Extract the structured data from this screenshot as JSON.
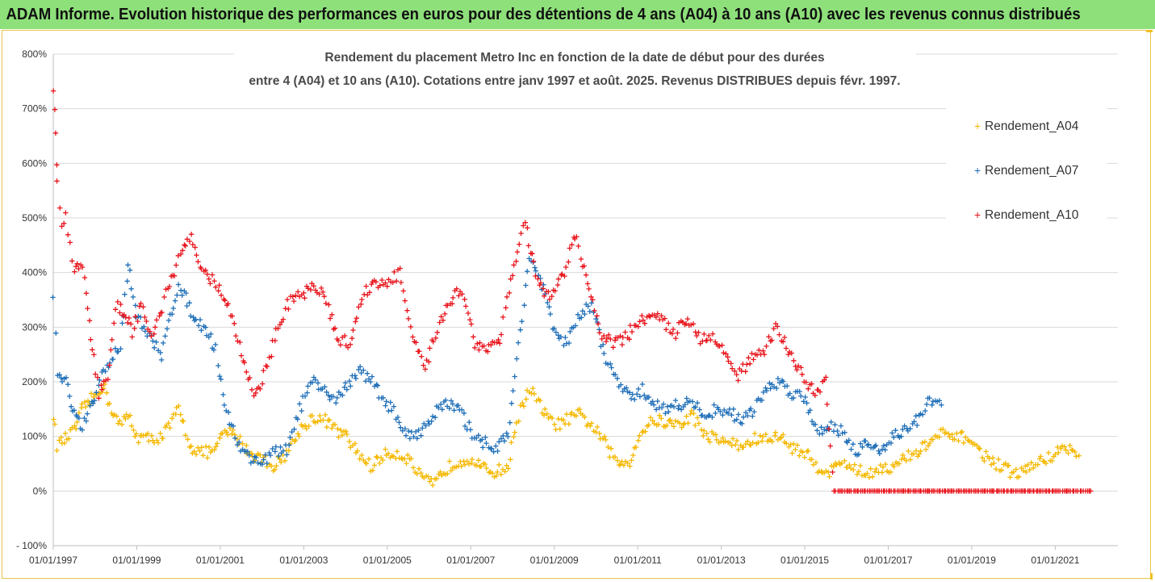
{
  "banner": {
    "title": "ADAM Informe. Evolution historique des performances en euros pour des détentions de 4 ans (A04) à 10 ans (A10) avec les revenus connus distribués"
  },
  "colors": {
    "banner_bg": "#8ee07a",
    "A04": "#f5b800",
    "A07": "#1f6fb8",
    "A10": "#e8141c",
    "grid": "#d9d9d9"
  },
  "chart_data": {
    "type": "scatter",
    "title_line1": "Rendement du placement Metro Inc en fonction de la date de début pour des durées",
    "title_line2": "entre 4 (A04) et 10 ans (A10). Cotations entre janv 1997 et août. 2025. Revenus DISTRIBUES depuis févr. 1997.",
    "xlabel": "",
    "ylabel": "",
    "ylim": [
      -100,
      800
    ],
    "xlim": [
      "1997-01-01",
      "2022-06-30"
    ],
    "grid": "horizontal",
    "legend_position": "right",
    "y_ticks": [
      "800%",
      "700%",
      "600%",
      "500%",
      "400%",
      "300%",
      "200%",
      "100%",
      "0%",
      "- 100%"
    ],
    "y_tick_values": [
      800,
      700,
      600,
      500,
      400,
      300,
      200,
      100,
      0,
      -100
    ],
    "x_ticks": [
      "01/01/1997",
      "01/01/1999",
      "01/01/2001",
      "01/01/2003",
      "01/01/2005",
      "01/01/2007",
      "01/01/2009",
      "01/01/2011",
      "01/01/2013",
      "01/01/2015",
      "01/01/2017",
      "01/01/2019",
      "01/01/2021"
    ],
    "x_tick_years": [
      1997,
      1999,
      2001,
      2003,
      2005,
      2007,
      2009,
      2011,
      2013,
      2015,
      2017,
      2019,
      2021
    ],
    "series": [
      {
        "name": "Rendement_A04",
        "x": [
          1997.0,
          1997.1,
          1997.3,
          1997.5,
          1997.7,
          1998.0,
          1998.2,
          1998.4,
          1998.6,
          1998.8,
          1999.0,
          1999.3,
          1999.6,
          1999.8,
          2000.0,
          2000.3,
          2000.6,
          2000.9,
          2001.1,
          2001.4,
          2001.7,
          2002.0,
          2002.3,
          2002.6,
          2002.9,
          2003.2,
          2003.5,
          2003.8,
          2004.0,
          2004.3,
          2004.6,
          2004.9,
          2005.2,
          2005.5,
          2005.8,
          2006.1,
          2006.4,
          2006.7,
          2007.0,
          2007.3,
          2007.6,
          2007.9,
          2008.1,
          2008.4,
          2008.7,
          2009.0,
          2009.3,
          2009.6,
          2009.9,
          2010.2,
          2010.5,
          2010.8,
          2011.1,
          2011.4,
          2011.7,
          2012.0,
          2012.3,
          2012.6,
          2012.9,
          2013.2,
          2013.5,
          2013.8,
          2014.1,
          2014.4,
          2014.7,
          2015.0,
          2015.3,
          2015.6,
          2015.9,
          2016.2,
          2016.5,
          2016.8,
          2017.1,
          2017.4,
          2017.7,
          2018.0,
          2018.3,
          2018.6,
          2018.9,
          2019.2,
          2019.5,
          2019.8,
          2020.1,
          2020.4,
          2020.7,
          2021.0,
          2021.3,
          2021.6
        ],
        "y": [
          140,
          85,
          95,
          110,
          150,
          175,
          195,
          150,
          120,
          140,
          100,
          95,
          100,
          120,
          150,
          80,
          70,
          75,
          110,
          100,
          70,
          60,
          45,
          70,
          110,
          135,
          130,
          110,
          100,
          70,
          45,
          65,
          70,
          60,
          25,
          10,
          40,
          55,
          60,
          40,
          35,
          45,
          130,
          190,
          150,
          120,
          130,
          140,
          120,
          90,
          50,
          55,
          110,
          130,
          125,
          120,
          140,
          105,
          95,
          90,
          80,
          95,
          95,
          100,
          80,
          70,
          45,
          35,
          55,
          40,
          30,
          45,
          40,
          60,
          70,
          90,
          105,
          95,
          100,
          70,
          55,
          40,
          30,
          45,
          55,
          70,
          80,
          60
        ]
      },
      {
        "name": "Rendement_A07",
        "x": [
          1997.0,
          1997.1,
          1997.3,
          1997.5,
          1997.7,
          1998.0,
          1998.2,
          1998.4,
          1998.6,
          1998.8,
          1999.0,
          1999.3,
          1999.6,
          1999.8,
          2000.0,
          2000.3,
          2000.6,
          2000.9,
          2001.1,
          2001.4,
          2001.7,
          2002.0,
          2002.3,
          2002.6,
          2002.9,
          2003.2,
          2003.5,
          2003.8,
          2004.0,
          2004.3,
          2004.6,
          2004.9,
          2005.2,
          2005.5,
          2005.8,
          2006.1,
          2006.4,
          2006.7,
          2007.0,
          2007.3,
          2007.6,
          2007.9,
          2008.1,
          2008.4,
          2008.7,
          2009.0,
          2009.3,
          2009.6,
          2009.9,
          2010.2,
          2010.5,
          2010.8,
          2011.1,
          2011.4,
          2011.7,
          2012.0,
          2012.3,
          2012.6,
          2012.9,
          2013.2,
          2013.5,
          2013.8,
          2014.1,
          2014.4,
          2014.7,
          2015.0,
          2015.3,
          2015.6,
          2015.9,
          2016.2,
          2016.5,
          2016.8,
          2017.1,
          2017.4,
          2017.7,
          2018.0,
          2018.3
        ],
        "y": [
          360,
          210,
          200,
          140,
          115,
          170,
          220,
          240,
          270,
          420,
          320,
          280,
          250,
          320,
          380,
          330,
          300,
          260,
          160,
          90,
          60,
          55,
          70,
          75,
          150,
          200,
          180,
          170,
          190,
          220,
          205,
          170,
          140,
          100,
          110,
          140,
          160,
          150,
          110,
          90,
          80,
          100,
          240,
          430,
          380,
          290,
          270,
          320,
          340,
          250,
          200,
          170,
          185,
          160,
          150,
          160,
          160,
          140,
          150,
          145,
          130,
          150,
          190,
          200,
          180,
          170,
          110,
          120,
          110,
          75,
          85,
          75,
          100,
          110,
          130,
          165,
          155
        ]
      },
      {
        "name": "Rendement_A10",
        "x": [
          1997.0,
          1997.05,
          1997.1,
          1997.2,
          1997.3,
          1997.4,
          1997.5,
          1997.7,
          1997.9,
          1998.1,
          1998.3,
          1998.5,
          1998.7,
          1998.9,
          1999.1,
          1999.4,
          1999.7,
          2000.0,
          2000.3,
          2000.6,
          2000.9,
          2001.2,
          2001.5,
          2001.8,
          2002.0,
          2002.3,
          2002.6,
          2002.9,
          2003.2,
          2003.5,
          2003.8,
          2004.1,
          2004.4,
          2004.7,
          2005.0,
          2005.3,
          2005.6,
          2005.9,
          2006.2,
          2006.5,
          2006.8,
          2007.1,
          2007.4,
          2007.7,
          2008.0,
          2008.3,
          2008.6,
          2008.9,
          2009.2,
          2009.5,
          2009.8,
          2010.1,
          2010.4,
          2010.7,
          2011.0,
          2011.3,
          2011.6,
          2011.9,
          2012.2,
          2012.5,
          2012.8,
          2013.1,
          2013.4,
          2013.7,
          2014.0,
          2014.3,
          2014.6,
          2014.9,
          2015.2,
          2015.5,
          2015.7,
          2016.0,
          2016.5,
          2017.0,
          2017.5,
          2018.0,
          2018.5,
          2019.0,
          2019.5,
          2020.0,
          2020.5,
          2021.0,
          2021.5,
          2021.9
        ],
        "y": [
          740,
          650,
          560,
          480,
          500,
          450,
          400,
          420,
          280,
          180,
          200,
          340,
          330,
          290,
          340,
          280,
          360,
          420,
          470,
          400,
          380,
          340,
          250,
          180,
          200,
          280,
          340,
          360,
          370,
          360,
          280,
          270,
          360,
          380,
          380,
          400,
          280,
          220,
          300,
          350,
          370,
          270,
          260,
          280,
          400,
          490,
          380,
          350,
          390,
          470,
          380,
          290,
          270,
          280,
          310,
          320,
          310,
          290,
          320,
          280,
          280,
          260,
          210,
          240,
          250,
          300,
          260,
          220,
          180,
          200,
          0,
          0,
          0,
          0,
          0,
          0,
          0,
          0,
          0,
          0,
          0,
          0,
          0,
          0
        ]
      }
    ]
  }
}
